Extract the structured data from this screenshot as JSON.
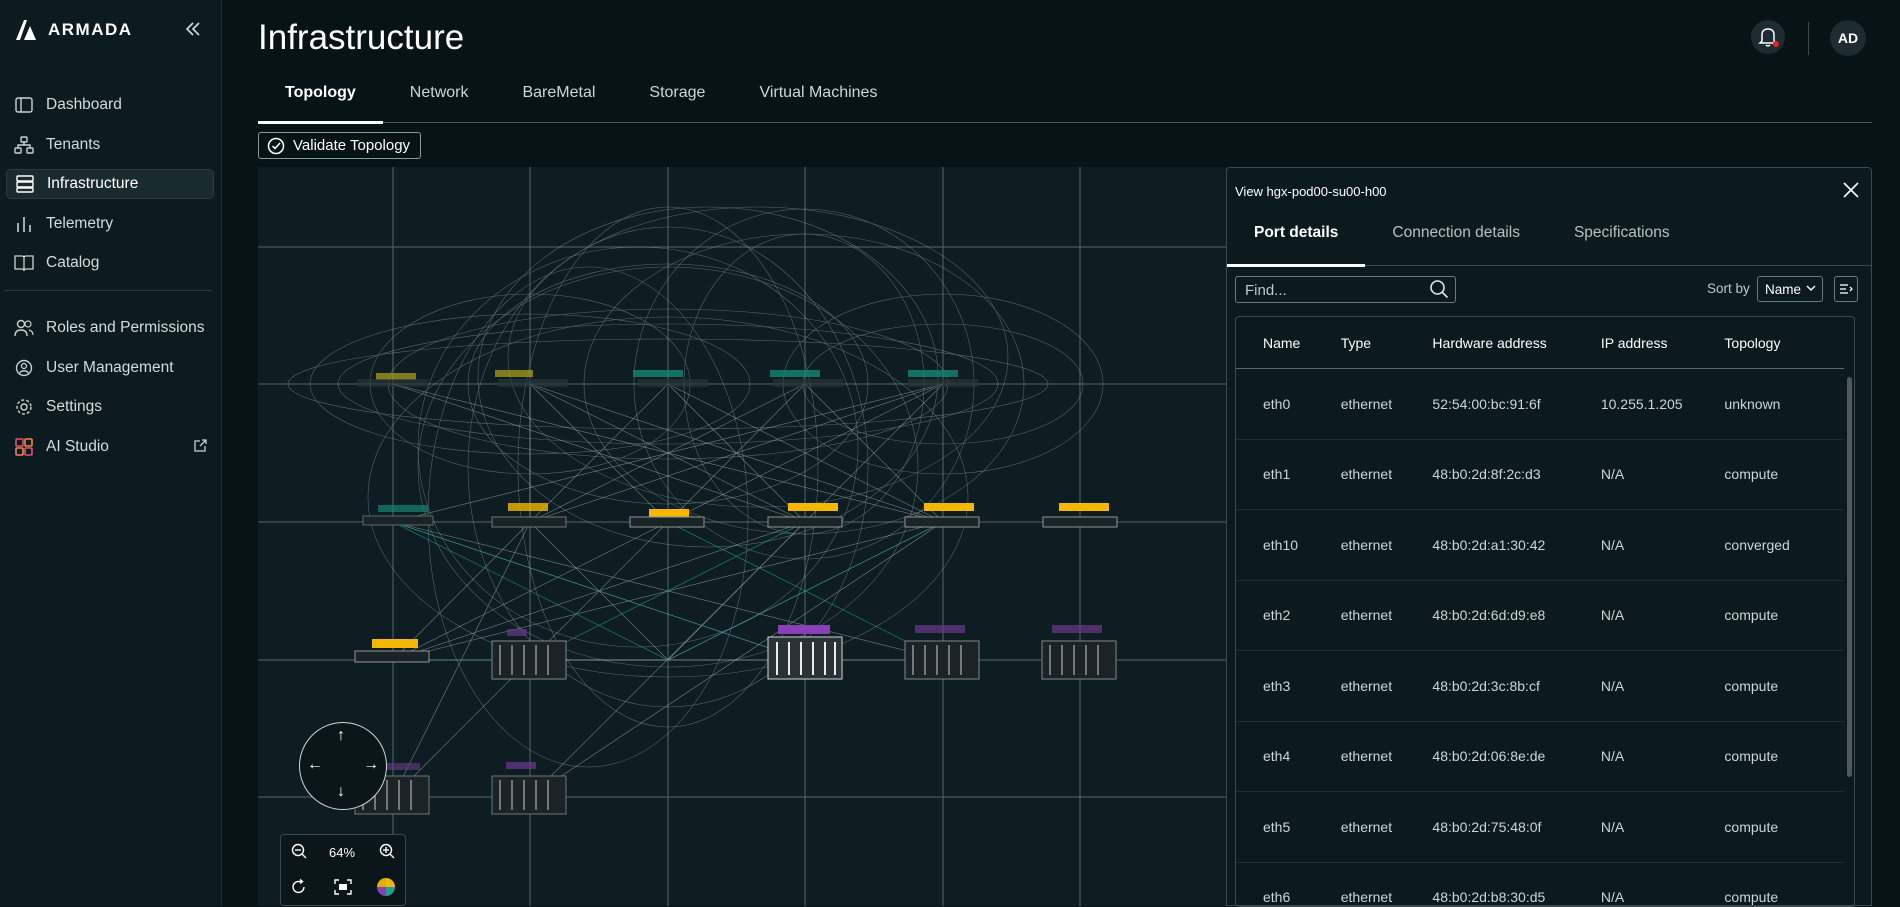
{
  "app": {
    "brand": "ARMADA"
  },
  "sidebar": {
    "items": [
      {
        "label": "Dashboard",
        "icon": "dashboard-icon"
      },
      {
        "label": "Tenants",
        "icon": "tenants-icon"
      },
      {
        "label": "Infrastructure",
        "icon": "server-icon",
        "active": true
      },
      {
        "label": "Telemetry",
        "icon": "bar-chart-icon"
      },
      {
        "label": "Catalog",
        "icon": "book-icon"
      },
      {
        "label": "Roles and Permissions",
        "icon": "people-icon"
      },
      {
        "label": "User Management",
        "icon": "user-gear-icon"
      },
      {
        "label": "Settings",
        "icon": "gear-icon"
      },
      {
        "label": "AI Studio",
        "icon": "ai-studio-icon"
      }
    ]
  },
  "header": {
    "title": "Infrastructure",
    "avatar": "AD"
  },
  "tabs": [
    "Topology",
    "Network",
    "BareMetal",
    "Storage",
    "Virtual Machines"
  ],
  "toolbar": {
    "validate_label": "Validate Topology"
  },
  "canvas": {
    "zoom_label": "64%"
  },
  "panel": {
    "title": "View hgx-pod00-su00-h00",
    "tabs": [
      "Port details",
      "Connection details",
      "Specifications"
    ],
    "search_placeholder": "Find...",
    "sort_label": "Sort by",
    "sort_value": "Name",
    "columns": [
      "Name",
      "Type",
      "Hardware address",
      "IP address",
      "Topology"
    ],
    "rows": [
      [
        "eth0",
        "ethernet",
        "52:54:00:bc:91:6f",
        "10.255.1.205",
        "unknown"
      ],
      [
        "eth1",
        "ethernet",
        "48:b0:2d:8f:2c:d3",
        "N/A",
        "compute"
      ],
      [
        "eth10",
        "ethernet",
        "48:b0:2d:a1:30:42",
        "N/A",
        "converged"
      ],
      [
        "eth2",
        "ethernet",
        "48:b0:2d:6d:d9:e8",
        "N/A",
        "compute"
      ],
      [
        "eth3",
        "ethernet",
        "48:b0:2d:3c:8b:cf",
        "N/A",
        "compute"
      ],
      [
        "eth4",
        "ethernet",
        "48:b0:2d:06:8e:de",
        "N/A",
        "compute"
      ],
      [
        "eth5",
        "ethernet",
        "48:b0:2d:75:48:0f",
        "N/A",
        "compute"
      ],
      [
        "eth6",
        "ethernet",
        "48:b0:2d:b8:30:d5",
        "N/A",
        "compute"
      ]
    ]
  },
  "colors": {
    "background": "#071417",
    "sidebar": "#0b1b1f",
    "node_yellow": "#f4b800",
    "node_teal": "#1aa58f",
    "node_purple": "#8a3fb8",
    "alert": "#e02424"
  }
}
